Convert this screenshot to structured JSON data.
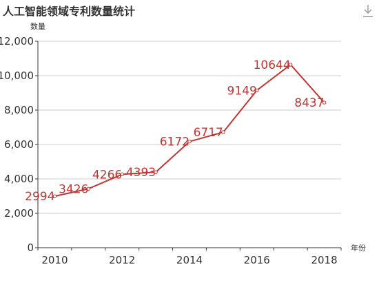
{
  "toolbox": {
    "download_icon": "download-icon"
  },
  "colors": {
    "series": "#c23531",
    "axis": "#333333",
    "grid": "#cccccc"
  },
  "chart_data": {
    "type": "line",
    "title": "人工智能领域专利数量统计",
    "xlabel": "年份",
    "ylabel": "数量",
    "x": [
      2010,
      2011,
      2012,
      2013,
      2014,
      2015,
      2016,
      2017,
      2018
    ],
    "x_tick_labels": [
      "2010",
      "2012",
      "2014",
      "2016",
      "2018"
    ],
    "y_tick_labels": [
      "0",
      "2,000",
      "4,000",
      "6,000",
      "8,000",
      "10,000",
      "12,000"
    ],
    "ylim": [
      0,
      12000
    ],
    "grid": true,
    "series": [
      {
        "values": [
          2994,
          3426,
          4266,
          4393,
          6172,
          6717,
          9149,
          10644,
          8437
        ]
      }
    ]
  }
}
